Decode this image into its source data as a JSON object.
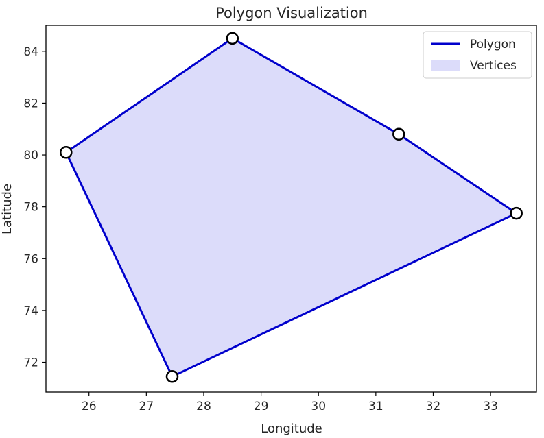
{
  "chart_data": {
    "type": "area",
    "title": "Polygon Visualization",
    "xlabel": "Longitude",
    "ylabel": "Latitude",
    "xlim": [
      25.25,
      33.8
    ],
    "ylim": [
      70.85,
      85.0
    ],
    "x_ticks": [
      26,
      27,
      28,
      29,
      30,
      31,
      32,
      33
    ],
    "y_ticks": [
      72,
      74,
      76,
      78,
      80,
      82,
      84
    ],
    "grid": false,
    "legend_position": "top-right",
    "legend": [
      {
        "label": "Polygon",
        "kind": "line"
      },
      {
        "label": "Vertices",
        "kind": "patch"
      }
    ],
    "line_color": "#0000cc",
    "fill_color": "#dcdcfa",
    "marker_edge_color": "#000000",
    "marker_face_color": "#ffffff",
    "vertices": [
      {
        "x": 25.6,
        "y": 80.1
      },
      {
        "x": 28.5,
        "y": 84.5
      },
      {
        "x": 31.4,
        "y": 80.8
      },
      {
        "x": 33.45,
        "y": 77.75
      },
      {
        "x": 27.45,
        "y": 71.45
      }
    ]
  }
}
